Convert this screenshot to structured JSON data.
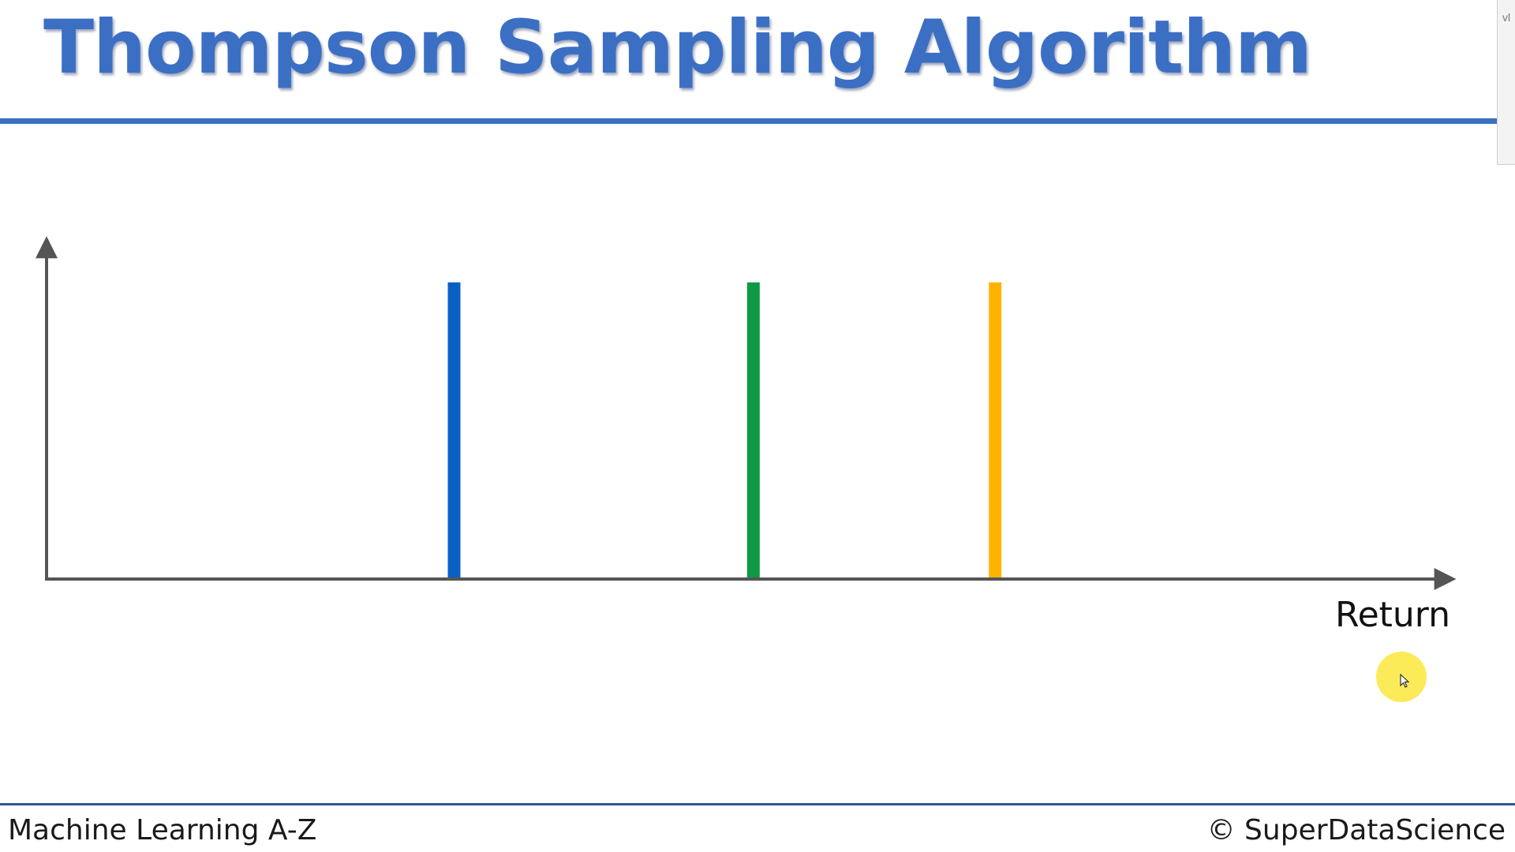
{
  "slide": {
    "title": "Thompson Sampling Algorithm",
    "footer_left": "Machine Learning A-Z",
    "footer_right": "© SuperDataScience"
  },
  "diagram": {
    "x_axis_label": "Return",
    "distributions": [
      {
        "color": "#0a5fc4",
        "position": 0.29
      },
      {
        "color": "#0e9a45",
        "position": 0.503
      },
      {
        "color": "#ffb300",
        "position": 0.675
      }
    ]
  },
  "colors": {
    "title": "#3b6fc4",
    "rule": "#3b6fc4",
    "axis": "#555555"
  },
  "side_panel": {
    "glyph": "vl"
  }
}
